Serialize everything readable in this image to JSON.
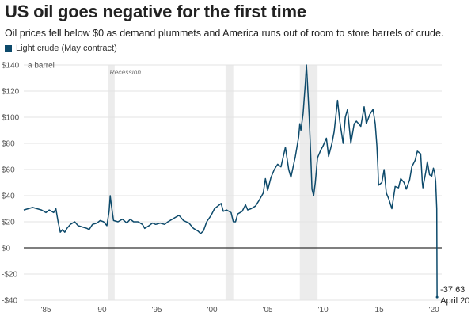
{
  "colors": {
    "line": "#0d4a6b",
    "grid": "#e3e3e3",
    "zero": "#333333",
    "recession": "#ececec"
  },
  "chart_data": {
    "type": "line",
    "title": "US oil goes negative for the first time",
    "subtitle": "Oil prices fell below $0 as demand plummets and America runs out of room to store barrels of crude.",
    "legend": "Light crude (May contract)",
    "ylabel": "a barrel",
    "ylim": [
      -40,
      140
    ],
    "yticks": [
      {
        "value": 140,
        "label": "$140"
      },
      {
        "value": 120,
        "label": "$120"
      },
      {
        "value": 100,
        "label": "$100"
      },
      {
        "value": 80,
        "label": "$80"
      },
      {
        "value": 60,
        "label": "$60"
      },
      {
        "value": 40,
        "label": "$40"
      },
      {
        "value": 20,
        "label": "$20"
      },
      {
        "value": 0,
        "label": "$0"
      },
      {
        "value": -20,
        "label": "-$20"
      },
      {
        "value": -40,
        "label": "-$40"
      }
    ],
    "xlim": [
      1983.0,
      2020.7
    ],
    "xticks": [
      {
        "value": 1985,
        "label": "'85"
      },
      {
        "value": 1990,
        "label": "'90"
      },
      {
        "value": 1995,
        "label": "'95"
      },
      {
        "value": 2000,
        "label": "'00"
      },
      {
        "value": 2005,
        "label": "'05"
      },
      {
        "value": 2010,
        "label": "'10"
      },
      {
        "value": 2015,
        "label": "'15"
      },
      {
        "value": 2020,
        "label": "'20"
      }
    ],
    "recessions": [
      {
        "start": 1990.6,
        "end": 1991.2,
        "label": "Recession"
      },
      {
        "start": 2001.2,
        "end": 2001.9,
        "label": ""
      },
      {
        "start": 2007.9,
        "end": 2009.5,
        "label": ""
      }
    ],
    "annotation": {
      "value": "-37.63",
      "date": "April 20"
    },
    "series": [
      {
        "name": "Light crude (May contract)",
        "points": [
          [
            1983.0,
            29
          ],
          [
            1983.4,
            30
          ],
          [
            1983.8,
            31
          ],
          [
            1984.2,
            30
          ],
          [
            1984.6,
            29
          ],
          [
            1985.0,
            27
          ],
          [
            1985.3,
            29
          ],
          [
            1985.7,
            27
          ],
          [
            1985.9,
            30
          ],
          [
            1986.1,
            20
          ],
          [
            1986.3,
            12
          ],
          [
            1986.5,
            14
          ],
          [
            1986.7,
            12
          ],
          [
            1986.9,
            15
          ],
          [
            1987.2,
            18
          ],
          [
            1987.6,
            20
          ],
          [
            1987.9,
            17
          ],
          [
            1988.3,
            16
          ],
          [
            1988.7,
            15
          ],
          [
            1988.9,
            14
          ],
          [
            1989.2,
            18
          ],
          [
            1989.6,
            19
          ],
          [
            1989.9,
            21
          ],
          [
            1990.2,
            20
          ],
          [
            1990.5,
            17
          ],
          [
            1990.7,
            28
          ],
          [
            1990.8,
            40
          ],
          [
            1990.9,
            33
          ],
          [
            1991.1,
            21
          ],
          [
            1991.5,
            20
          ],
          [
            1991.9,
            22
          ],
          [
            1992.3,
            19
          ],
          [
            1992.6,
            22
          ],
          [
            1992.9,
            20
          ],
          [
            1993.3,
            20
          ],
          [
            1993.7,
            18
          ],
          [
            1993.9,
            15
          ],
          [
            1994.3,
            17
          ],
          [
            1994.6,
            19
          ],
          [
            1994.9,
            18
          ],
          [
            1995.3,
            19
          ],
          [
            1995.7,
            18
          ],
          [
            1996.0,
            20
          ],
          [
            1996.4,
            22
          ],
          [
            1996.8,
            24
          ],
          [
            1997.0,
            25
          ],
          [
            1997.4,
            21
          ],
          [
            1997.9,
            19
          ],
          [
            1998.3,
            15
          ],
          [
            1998.7,
            13
          ],
          [
            1998.95,
            11
          ],
          [
            1999.2,
            13
          ],
          [
            1999.5,
            20
          ],
          [
            1999.9,
            25
          ],
          [
            2000.2,
            30
          ],
          [
            2000.5,
            32
          ],
          [
            2000.8,
            34
          ],
          [
            2001.0,
            28
          ],
          [
            2001.3,
            29
          ],
          [
            2001.7,
            27
          ],
          [
            2001.9,
            20
          ],
          [
            2002.1,
            20
          ],
          [
            2002.3,
            26
          ],
          [
            2002.7,
            28
          ],
          [
            2003.0,
            33
          ],
          [
            2003.2,
            29
          ],
          [
            2003.5,
            30
          ],
          [
            2003.9,
            32
          ],
          [
            2004.2,
            36
          ],
          [
            2004.6,
            42
          ],
          [
            2004.8,
            53
          ],
          [
            2005.0,
            44
          ],
          [
            2005.3,
            54
          ],
          [
            2005.6,
            60
          ],
          [
            2005.9,
            64
          ],
          [
            2006.2,
            62
          ],
          [
            2006.6,
            77
          ],
          [
            2006.9,
            60
          ],
          [
            2007.1,
            54
          ],
          [
            2007.5,
            70
          ],
          [
            2007.8,
            85
          ],
          [
            2007.9,
            95
          ],
          [
            2008.0,
            90
          ],
          [
            2008.2,
            103
          ],
          [
            2008.4,
            126
          ],
          [
            2008.5,
            140
          ],
          [
            2008.6,
            125
          ],
          [
            2008.75,
            100
          ],
          [
            2008.9,
            68
          ],
          [
            2009.0,
            45
          ],
          [
            2009.15,
            40
          ],
          [
            2009.3,
            50
          ],
          [
            2009.5,
            69
          ],
          [
            2009.8,
            75
          ],
          [
            2010.0,
            78
          ],
          [
            2010.3,
            84
          ],
          [
            2010.5,
            70
          ],
          [
            2010.8,
            80
          ],
          [
            2011.0,
            89
          ],
          [
            2011.3,
            113
          ],
          [
            2011.5,
            97
          ],
          [
            2011.8,
            80
          ],
          [
            2012.0,
            100
          ],
          [
            2012.2,
            106
          ],
          [
            2012.5,
            80
          ],
          [
            2012.8,
            95
          ],
          [
            2013.0,
            97
          ],
          [
            2013.4,
            93
          ],
          [
            2013.7,
            108
          ],
          [
            2013.9,
            95
          ],
          [
            2014.2,
            102
          ],
          [
            2014.5,
            106
          ],
          [
            2014.7,
            95
          ],
          [
            2014.85,
            78
          ],
          [
            2014.95,
            60
          ],
          [
            2015.0,
            48
          ],
          [
            2015.3,
            50
          ],
          [
            2015.5,
            60
          ],
          [
            2015.7,
            42
          ],
          [
            2015.9,
            38
          ],
          [
            2016.05,
            34
          ],
          [
            2016.2,
            30
          ],
          [
            2016.5,
            47
          ],
          [
            2016.8,
            46
          ],
          [
            2017.0,
            53
          ],
          [
            2017.3,
            50
          ],
          [
            2017.5,
            45
          ],
          [
            2017.8,
            52
          ],
          [
            2018.0,
            62
          ],
          [
            2018.3,
            67
          ],
          [
            2018.5,
            74
          ],
          [
            2018.8,
            72
          ],
          [
            2018.95,
            50
          ],
          [
            2019.0,
            46
          ],
          [
            2019.3,
            60
          ],
          [
            2019.4,
            66
          ],
          [
            2019.6,
            56
          ],
          [
            2019.8,
            55
          ],
          [
            2019.95,
            61
          ],
          [
            2020.05,
            58
          ],
          [
            2020.15,
            51
          ],
          [
            2020.25,
            30
          ],
          [
            2020.28,
            -37.63
          ]
        ]
      }
    ]
  }
}
